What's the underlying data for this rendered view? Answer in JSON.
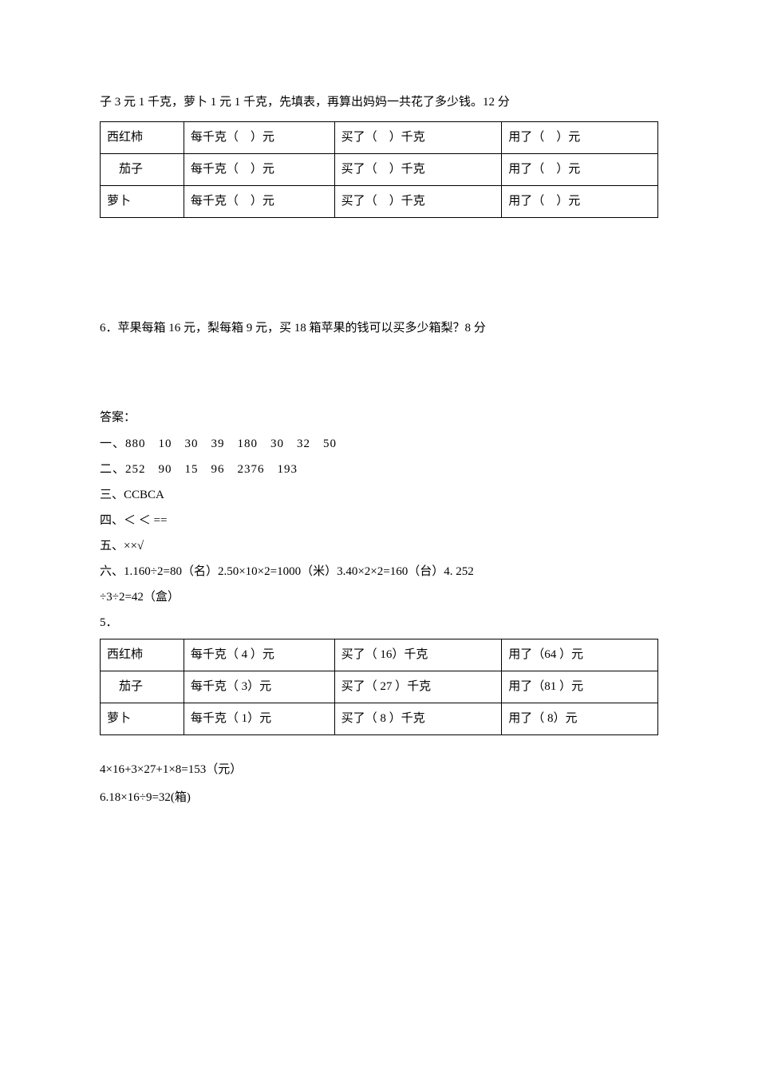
{
  "intro": "子 3 元 1 千克，萝卜 1 元 1 千克，先填表，再算出妈妈一共花了多少钱。12 分",
  "table1": {
    "rows": [
      {
        "veg": "西红柿",
        "price": "每千克（　）元",
        "qty": "买了（　）千克",
        "cost": "用了（　）元"
      },
      {
        "veg": "　茄子",
        "price": "每千克（　）元",
        "qty": "买了（　）千克",
        "cost": "用了（　）元"
      },
      {
        "veg": "萝卜",
        "price": "每千克（　）元",
        "qty": "买了（　）千克",
        "cost": "用了（　）元"
      }
    ]
  },
  "q6": "6．苹果每箱 16 元，梨每箱 9 元，买 18 箱苹果的钱可以买多少箱梨？8 分",
  "answers": {
    "title": "答案：",
    "a1": "一、880　10　30　39　180　30　32　50",
    "a2": "二、252　90　15　96　2376　193",
    "a3": "三、CCBCA",
    "a4": "四、＜ ＜ ==",
    "a5": "五、××√",
    "a6line1": "六、1.160÷2=80（名）2.50×10×2=1000（米）3.40×2×2=160（台）4. 252",
    "a6line2": "÷3÷2=42（盒）",
    "q5label": "5．"
  },
  "table2": {
    "rows": [
      {
        "veg": "西红柿",
        "price": "每千克（ 4 ）元",
        "qty": "买了（ 16）千克",
        "cost": "用了（64 ）元"
      },
      {
        "veg": "　茄子",
        "price": "每千克（ 3）元",
        "qty": "买了（ 27 ）千克",
        "cost": "用了（81 ）元"
      },
      {
        "veg": "萝卜",
        "price": "每千克（ 1）元",
        "qty": "买了（ 8 ）千克",
        "cost": "用了（ 8）元"
      }
    ]
  },
  "calc1": "4×16+3×27+1×8=153（元）",
  "calc2": "6.18×16÷9=32(箱)"
}
